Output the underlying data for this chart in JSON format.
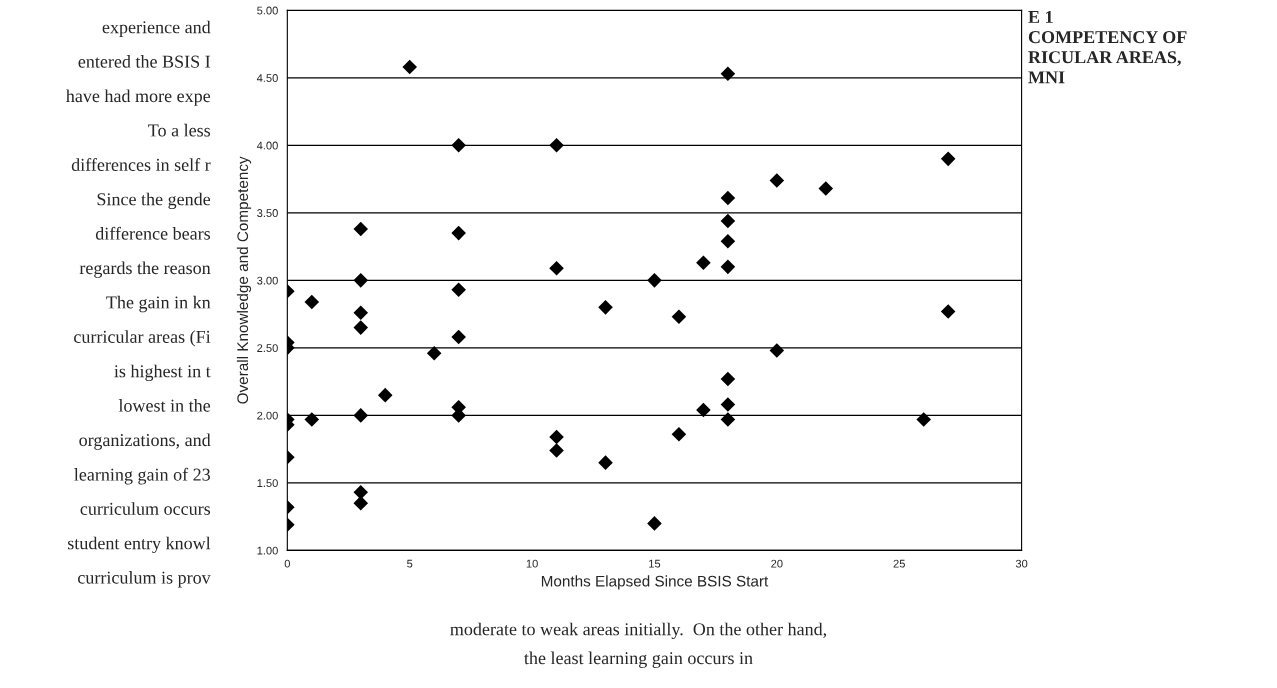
{
  "chart_data": {
    "type": "scatter",
    "title": "E 1\nCOMPETENCY OF\nRICULAR AREAS,\nMNI",
    "xlabel": "Months Elapsed Since BSIS Start",
    "ylabel": "Overall Knowledge and Competency",
    "x": [
      5,
      7,
      11,
      3,
      7,
      11,
      3,
      0,
      7,
      1,
      13,
      3,
      3,
      7,
      0,
      0,
      6,
      4,
      7,
      7,
      3,
      1,
      0,
      0,
      0,
      11,
      11,
      13,
      3,
      3,
      0,
      0,
      16,
      27,
      20,
      18,
      18,
      17,
      18,
      26,
      16,
      15,
      18,
      27,
      20,
      22,
      18,
      18,
      18,
      17,
      18,
      15
    ],
    "values": [
      4.58,
      4.0,
      4.0,
      3.38,
      3.35,
      3.09,
      3.0,
      2.92,
      2.93,
      2.84,
      2.8,
      2.76,
      2.65,
      2.58,
      2.54,
      2.5,
      2.46,
      2.15,
      2.06,
      2.0,
      2.0,
      1.97,
      1.97,
      1.93,
      1.69,
      1.84,
      1.74,
      1.65,
      1.43,
      1.35,
      1.32,
      1.19,
      2.73,
      2.77,
      2.48,
      2.27,
      2.08,
      2.04,
      1.97,
      1.97,
      1.86,
      1.2,
      4.53,
      3.9,
      3.74,
      3.68,
      3.61,
      3.44,
      3.29,
      3.13,
      3.1,
      3.0
    ],
    "color": "#000000",
    "marker": "diamond",
    "grid": "y",
    "xlim": [
      0,
      30
    ],
    "xticks": [
      0,
      5,
      10,
      15,
      20,
      25,
      30
    ],
    "ylim": [
      1,
      5
    ],
    "yticks": [
      {
        "value": 1,
        "label": "1.00"
      },
      {
        "value": 1.5,
        "label": "1.50"
      },
      {
        "value": 2,
        "label": "2.00"
      },
      {
        "value": 2.5,
        "label": "2.50"
      },
      {
        "value": 3,
        "label": "3.00"
      },
      {
        "value": 3.5,
        "label": "3.50"
      },
      {
        "value": 4,
        "label": "4.00"
      },
      {
        "value": 4.5,
        "label": "4.50"
      },
      {
        "value": 5,
        "label": "5.00"
      }
    ],
    "annotations": [
      "experience and",
      "entered the BSIS I",
      "have had more expe",
      "To a less",
      "differences in self r",
      "Since the gende",
      "difference bears",
      "regards the reason",
      "The gain in kn",
      "curricular areas (Fi",
      "is highest in t",
      "lowest in the",
      "organizations, and",
      "learning gain of 23",
      "curriculum occurs",
      "student entry knowl",
      "curriculum is prov",
      "moderate to weak areas initially.  On the other hand,",
      "the least learning gain occurs in"
    ]
  }
}
